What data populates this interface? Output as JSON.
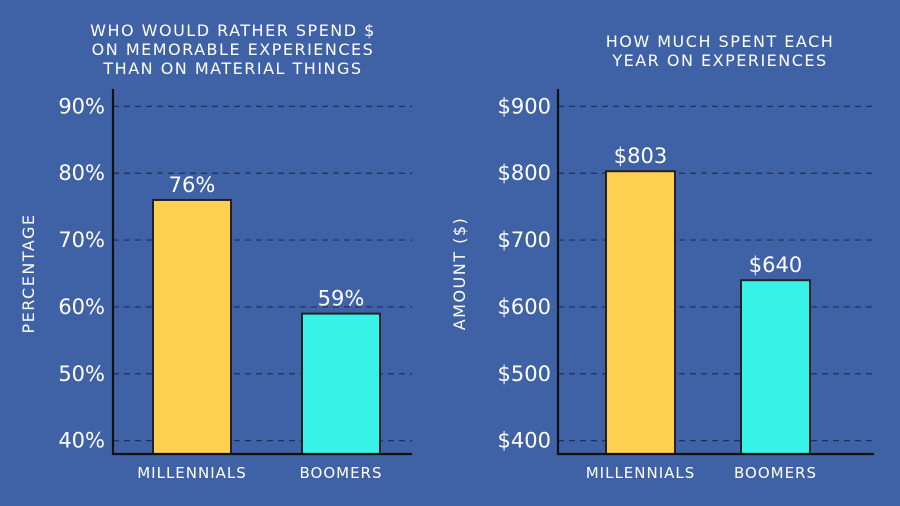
{
  "chart_data": [
    {
      "type": "bar",
      "title_lines": [
        "WHO WOULD RATHER SPEND $",
        "ON MEMORABLE EXPERIENCES",
        "THAN ON MATERIAL THINGS"
      ],
      "ylabel": "PERCENTAGE",
      "categories": [
        "MILLENNIALS",
        "BOOMERS"
      ],
      "values": [
        76,
        59
      ],
      "value_labels": [
        "76%",
        "59%"
      ],
      "ylim": [
        38,
        92
      ],
      "yticks": [
        40,
        50,
        60,
        70,
        80,
        90
      ],
      "ytick_labels": [
        "40%",
        "50%",
        "60%",
        "70%",
        "80%",
        "90%"
      ],
      "grid": true,
      "colors": [
        "#ffd04f",
        "#38f2e8"
      ]
    },
    {
      "type": "bar",
      "title_lines": [
        "HOW MUCH SPENT EACH",
        "YEAR ON EXPERIENCES"
      ],
      "ylabel": "AMOUNT ($)",
      "categories": [
        "MILLENNIALS",
        "BOOMERS"
      ],
      "values": [
        803,
        640
      ],
      "value_labels": [
        "$803",
        "$640"
      ],
      "ylim": [
        380,
        920
      ],
      "yticks": [
        400,
        500,
        600,
        700,
        800,
        900
      ],
      "ytick_labels": [
        "$400",
        "$500",
        "$600",
        "$700",
        "$800",
        "$900"
      ],
      "grid": true,
      "colors": [
        "#ffd04f",
        "#38f2e8"
      ]
    }
  ]
}
